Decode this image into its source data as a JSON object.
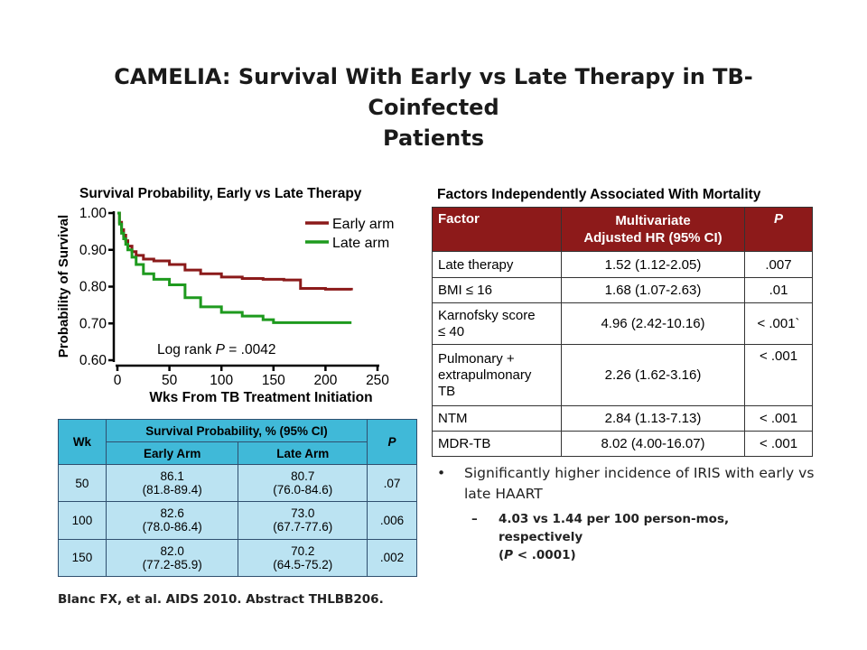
{
  "slide": {
    "title_line1": "CAMELIA: Survival With Early vs Late Therapy in TB-Coinfected",
    "title_line2": "Patients",
    "citation": "Blanc FX, et al. AIDS 2010. Abstract THLBB206."
  },
  "chart_data": {
    "type": "line",
    "title": "Survival Probability, Early vs Late Therapy",
    "xlabel": "Wks From TB Treatment Initiation",
    "ylabel": "Probability of Survival",
    "xlim": [
      0,
      250
    ],
    "ylim": [
      0.6,
      1.0
    ],
    "x_ticks": [
      "0",
      "50",
      "100",
      "150",
      "200",
      "250"
    ],
    "y_ticks": [
      "0.60",
      "0.70",
      "0.80",
      "0.90",
      "1.00"
    ],
    "legend": "top-right",
    "annotation": "Log rank P = .0042",
    "series": [
      {
        "name": "Early arm",
        "color": "#8b1a1a",
        "x": [
          0,
          2,
          4,
          6,
          8,
          10,
          14,
          18,
          25,
          35,
          50,
          65,
          80,
          100,
          120,
          140,
          160,
          175,
          176,
          200,
          225
        ],
        "y": [
          1.0,
          0.975,
          0.955,
          0.94,
          0.925,
          0.91,
          0.895,
          0.885,
          0.875,
          0.87,
          0.86,
          0.845,
          0.835,
          0.826,
          0.822,
          0.82,
          0.818,
          0.818,
          0.795,
          0.793,
          0.79
        ]
      },
      {
        "name": "Late arm",
        "color": "#1e9a1e",
        "x": [
          0,
          2,
          4,
          6,
          8,
          10,
          14,
          18,
          25,
          35,
          50,
          65,
          80,
          100,
          120,
          140,
          150,
          160,
          200,
          225
        ],
        "y": [
          1.0,
          0.97,
          0.945,
          0.93,
          0.915,
          0.9,
          0.88,
          0.86,
          0.835,
          0.82,
          0.805,
          0.77,
          0.745,
          0.73,
          0.72,
          0.71,
          0.702,
          0.702,
          0.702,
          0.702
        ]
      }
    ]
  },
  "survival_table": {
    "col_wk": "Wk",
    "col_group": "Survival Probability, % (95% CI)",
    "col_early": "Early Arm",
    "col_late": "Late Arm",
    "col_p": "P",
    "rows": [
      {
        "wk": "50",
        "early": "86.1",
        "early_ci": "(81.8-89.4)",
        "late": "80.7",
        "late_ci": "(76.0-84.6)",
        "p": ".07"
      },
      {
        "wk": "100",
        "early": "82.6",
        "early_ci": "(78.0-86.4)",
        "late": "73.0",
        "late_ci": "(67.7-77.6)",
        "p": ".006"
      },
      {
        "wk": "150",
        "early": "82.0",
        "early_ci": "(77.2-85.9)",
        "late": "70.2",
        "late_ci": "(64.5-75.2)",
        "p": ".002"
      }
    ]
  },
  "factors_table": {
    "title": "Factors Independently Associated With Mortality",
    "col_factor": "Factor",
    "col_hr_line1": "Multivariate",
    "col_hr_line2": "Adjusted HR (95% CI)",
    "col_p": "P",
    "rows": [
      {
        "factor": "Late therapy",
        "hr": "1.52 (1.12-2.05)",
        "p": ".007"
      },
      {
        "factor": "BMI ≤ 16",
        "hr": "1.68 (1.07-2.63)",
        "p": ".01"
      },
      {
        "factor_line1": "Karnofsky score",
        "factor_line2": "≤ 40",
        "hr": "4.96 (2.42-10.16)",
        "p": "< .001`"
      },
      {
        "factor_line1": "Pulmonary +",
        "factor_line2": "extrapulmonary",
        "factor_line3": "TB",
        "hr": "2.26 (1.62-3.16)",
        "p": "< .001"
      },
      {
        "factor": "NTM",
        "hr": "2.84 (1.13-7.13)",
        "p": "< .001"
      },
      {
        "factor": "MDR-TB",
        "hr": "8.02 (4.00-16.07)",
        "p": "< .001"
      }
    ]
  },
  "bullets": {
    "marker": "•",
    "main": "Significantly higher incidence of IRIS with early vs late HAART",
    "sub_marker": "–",
    "sub_line1": "4.03 vs 1.44 per 100 person-mos, respectively",
    "sub_line2_pre": "(",
    "sub_line2_p": "P",
    "sub_line2_post": " < .0001)"
  }
}
